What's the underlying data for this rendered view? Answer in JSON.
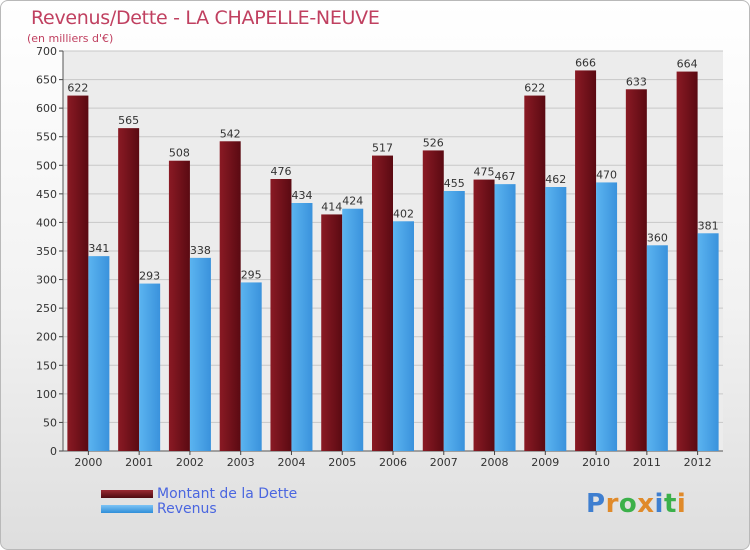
{
  "header": {
    "title": "Revenus/Dette - LA CHAPELLE-NEUVE",
    "subtitle": "(en milliers d'€)"
  },
  "logo": {
    "text": "Proxiti",
    "letters": [
      "P",
      "r",
      "o",
      "x",
      "i",
      "t",
      "i"
    ],
    "colors": [
      "#3f7fd0",
      "#e08a2a",
      "#3bb04a",
      "#e08a2a",
      "#3f7fd0",
      "#3bb04a",
      "#e08a2a"
    ]
  },
  "colors": {
    "dette": "#6e1119",
    "revenus": "#4aa3e6",
    "tick_text": "#333333",
    "grid": "#c8c8c8",
    "title": "#c04060",
    "legend_text": "#4a66e0"
  },
  "chart_data": {
    "type": "bar",
    "title": "Revenus/Dette - LA CHAPELLE-NEUVE",
    "ylabel": "(en milliers d'€)",
    "xlabel": "",
    "categories": [
      "2000",
      "2001",
      "2002",
      "2003",
      "2004",
      "2005",
      "2006",
      "2007",
      "2008",
      "2009",
      "2010",
      "2011",
      "2012"
    ],
    "series": [
      {
        "name": "Montant de la Dette",
        "color": "#6e1119",
        "values": [
          622,
          565,
          508,
          542,
          476,
          414,
          517,
          526,
          475,
          622,
          666,
          633,
          664
        ]
      },
      {
        "name": "Revenus",
        "color": "#4aa3e6",
        "values": [
          341,
          293,
          338,
          295,
          434,
          424,
          402,
          455,
          467,
          462,
          470,
          360,
          381
        ]
      }
    ],
    "ylim": [
      0,
      700
    ],
    "yticks": [
      0,
      50,
      100,
      150,
      200,
      250,
      300,
      350,
      400,
      450,
      500,
      550,
      600,
      650,
      700
    ],
    "grid": true,
    "legend_position": "bottom-left"
  }
}
